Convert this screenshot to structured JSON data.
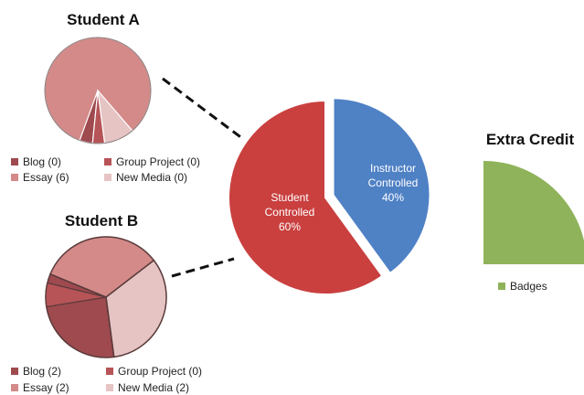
{
  "chart_data": [
    {
      "type": "pie",
      "title": "Student A",
      "series": [
        {
          "name": "Blog",
          "value": 0,
          "label": "Blog (0)",
          "color": "#9e4a4f"
        },
        {
          "name": "Group Project",
          "value": 0,
          "label": "Group Project (0)",
          "color": "#b65457"
        },
        {
          "name": "Essay",
          "value": 6,
          "label": "Essay (6)",
          "color": "#d38a88"
        },
        {
          "name": "New Media",
          "value": 0,
          "label": "New Media (0)",
          "color": "#e6c4c4"
        }
      ]
    },
    {
      "type": "pie",
      "title": "Student B",
      "series": [
        {
          "name": "Blog",
          "value": 2,
          "label": "Blog (2)",
          "color": "#9e4a4f"
        },
        {
          "name": "Group Project",
          "value": 0,
          "label": "Group Project (0)",
          "color": "#b65457"
        },
        {
          "name": "Essay",
          "value": 2,
          "label": "Essay (2)",
          "color": "#d38a88"
        },
        {
          "name": "New Media",
          "value": 2,
          "label": "New Media (2)",
          "color": "#e6c4c4"
        }
      ]
    },
    {
      "type": "pie",
      "title": "",
      "series": [
        {
          "name": "Student Controlled",
          "value": 60,
          "label_lines": [
            "Student",
            "Controlled",
            "60%"
          ],
          "color": "#c9403f"
        },
        {
          "name": "Instructor Controlled",
          "value": 40,
          "label_lines": [
            "Instructor",
            "Controlled",
            "40%"
          ],
          "color": "#4f81c5"
        }
      ]
    },
    {
      "type": "pie",
      "title": "Extra Credit",
      "series": [
        {
          "name": "Badges",
          "value": 1,
          "label": "Badges",
          "color": "#8fb35a"
        }
      ]
    }
  ]
}
